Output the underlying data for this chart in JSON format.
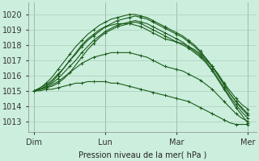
{
  "bg_color": "#cceedd",
  "grid_color": "#aaccbb",
  "line_color": "#1a5c1a",
  "marker": "+",
  "markersize": 3,
  "linewidth": 0.8,
  "xlabel": "Pression niveau de la mer( hPa )",
  "xlabel_fontsize": 7,
  "xtick_labels": [
    "Dim",
    "Lun",
    "Mar",
    "Mer"
  ],
  "xtick_positions": [
    0,
    48,
    96,
    144
  ],
  "ytick_min": 1013,
  "ytick_max": 1020,
  "ylim": [
    1012.3,
    1020.8
  ],
  "xlim": [
    -4,
    150
  ],
  "series": [
    [
      1015.0,
      1015.1,
      1015.2,
      1015.3,
      1015.5,
      1015.8,
      1016.2,
      1016.7,
      1017.2,
      1017.7,
      1018.1,
      1018.5,
      1018.8,
      1019.0,
      1019.2,
      1019.3,
      1019.4,
      1019.5,
      1019.4,
      1019.2,
      1019.0,
      1018.8,
      1018.6,
      1018.4,
      1018.2,
      1018.0,
      1017.8,
      1017.5,
      1017.2,
      1016.8,
      1016.3,
      1015.7,
      1015.1,
      1014.5,
      1013.9,
      1013.4,
      1012.9
    ],
    [
      1015.0,
      1015.1,
      1015.3,
      1015.5,
      1015.8,
      1016.2,
      1016.6,
      1017.0,
      1017.5,
      1017.9,
      1018.3,
      1018.6,
      1018.9,
      1019.1,
      1019.3,
      1019.4,
      1019.5,
      1019.6,
      1019.5,
      1019.4,
      1019.2,
      1019.0,
      1018.8,
      1018.6,
      1018.4,
      1018.2,
      1017.9,
      1017.6,
      1017.3,
      1016.9,
      1016.4,
      1015.8,
      1015.2,
      1014.6,
      1014.1,
      1013.6,
      1013.2
    ],
    [
      1015.0,
      1015.2,
      1015.4,
      1015.7,
      1016.1,
      1016.5,
      1017.0,
      1017.4,
      1017.9,
      1018.3,
      1018.6,
      1018.9,
      1019.2,
      1019.4,
      1019.6,
      1019.7,
      1019.8,
      1019.9,
      1019.8,
      1019.7,
      1019.5,
      1019.3,
      1019.1,
      1018.9,
      1018.7,
      1018.5,
      1018.2,
      1017.9,
      1017.5,
      1017.1,
      1016.6,
      1016.0,
      1015.4,
      1014.8,
      1014.3,
      1013.8,
      1013.4
    ],
    [
      1015.0,
      1015.2,
      1015.5,
      1015.9,
      1016.4,
      1016.9,
      1017.4,
      1017.9,
      1018.3,
      1018.7,
      1019.0,
      1019.3,
      1019.5,
      1019.7,
      1019.8,
      1019.9,
      1020.0,
      1020.0,
      1019.9,
      1019.8,
      1019.6,
      1019.4,
      1019.2,
      1019.0,
      1018.8,
      1018.6,
      1018.3,
      1018.0,
      1017.6,
      1017.1,
      1016.6,
      1016.0,
      1015.4,
      1014.8,
      1014.3,
      1013.9,
      1013.5
    ],
    [
      1015.0,
      1015.1,
      1015.3,
      1015.6,
      1016.0,
      1016.5,
      1017.0,
      1017.5,
      1018.0,
      1018.4,
      1018.7,
      1019.0,
      1019.2,
      1019.3,
      1019.4,
      1019.4,
      1019.4,
      1019.3,
      1019.2,
      1019.0,
      1018.8,
      1018.6,
      1018.4,
      1018.3,
      1018.2,
      1018.1,
      1017.9,
      1017.7,
      1017.4,
      1017.0,
      1016.6,
      1016.1,
      1015.5,
      1015.0,
      1014.5,
      1014.1,
      1013.8
    ],
    [
      1015.0,
      1015.1,
      1015.2,
      1015.4,
      1015.6,
      1015.9,
      1016.2,
      1016.5,
      1016.8,
      1017.0,
      1017.2,
      1017.3,
      1017.4,
      1017.5,
      1017.5,
      1017.5,
      1017.5,
      1017.4,
      1017.3,
      1017.2,
      1017.0,
      1016.8,
      1016.6,
      1016.5,
      1016.4,
      1016.3,
      1016.1,
      1015.9,
      1015.7,
      1015.4,
      1015.1,
      1014.7,
      1014.3,
      1013.9,
      1013.5,
      1013.2,
      1013.0
    ],
    [
      1015.0,
      1015.0,
      1015.1,
      1015.1,
      1015.2,
      1015.3,
      1015.4,
      1015.5,
      1015.5,
      1015.6,
      1015.6,
      1015.6,
      1015.6,
      1015.5,
      1015.5,
      1015.4,
      1015.3,
      1015.2,
      1015.1,
      1015.0,
      1014.9,
      1014.8,
      1014.7,
      1014.6,
      1014.5,
      1014.4,
      1014.3,
      1014.1,
      1013.9,
      1013.7,
      1013.5,
      1013.3,
      1013.1,
      1012.9,
      1012.8,
      1012.8,
      1012.8
    ]
  ]
}
